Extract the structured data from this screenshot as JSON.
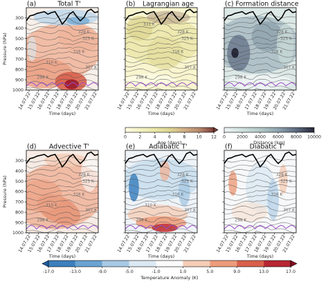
{
  "chart_data": {
    "type": "heatmap",
    "panels": [
      {
        "id": "a",
        "letter": "(a)",
        "title": "Total T'",
        "field": "total"
      },
      {
        "id": "b",
        "letter": "(b)",
        "title": "Lagrangian age",
        "field": "age"
      },
      {
        "id": "c",
        "letter": "(c)",
        "title": "Formation distance",
        "field": "distance"
      },
      {
        "id": "d",
        "letter": "(d)",
        "title": "Advective T'",
        "field": "advective"
      },
      {
        "id": "e",
        "letter": "(e)",
        "title": "Adiabatic T'",
        "field": "adiabatic"
      },
      {
        "id": "f",
        "letter": "(f)",
        "title": "Diabatic T'",
        "field": "diabatic"
      }
    ],
    "x_tick_labels": [
      "14.07.22",
      "15.07.22",
      "16.07.22",
      "17.07.22",
      "18.07.22",
      "19.07.22",
      "20.07.22",
      "21.07.22"
    ],
    "xlabel": "Time (days)",
    "ylabel": "Pressure (hPa)",
    "y_ticks": [
      300,
      400,
      500,
      600,
      700,
      800,
      900,
      1000
    ],
    "ylim": [
      1000,
      200
    ],
    "contour_labels": [
      {
        "panel": "a",
        "text": "328 K",
        "x": 0.8,
        "y": 0.31
      },
      {
        "panel": "a",
        "text": "325 K",
        "x": 0.86,
        "y": 0.39
      },
      {
        "panel": "a",
        "text": "316 K",
        "x": 0.73,
        "y": 0.55
      },
      {
        "panel": "a",
        "text": "310 K",
        "x": 0.35,
        "y": 0.68
      },
      {
        "panel": "a",
        "text": "307 K",
        "x": 0.9,
        "y": 0.74
      },
      {
        "panel": "a",
        "text": "298 K",
        "x": 0.23,
        "y": 0.86
      },
      {
        "panel": "b",
        "text": "331 K",
        "x": 0.33,
        "y": 0.22
      },
      {
        "panel": "b",
        "text": "328 K",
        "x": 0.8,
        "y": 0.31
      },
      {
        "panel": "b",
        "text": "325 K",
        "x": 0.86,
        "y": 0.39
      },
      {
        "panel": "b",
        "text": "316 K",
        "x": 0.73,
        "y": 0.55
      },
      {
        "panel": "b",
        "text": "307 K",
        "x": 0.9,
        "y": 0.74
      },
      {
        "panel": "b",
        "text": "298 K",
        "x": 0.23,
        "y": 0.86
      },
      {
        "panel": "c",
        "text": "328 K",
        "x": 0.8,
        "y": 0.31
      },
      {
        "panel": "c",
        "text": "325 K",
        "x": 0.86,
        "y": 0.39
      },
      {
        "panel": "c",
        "text": "316 K",
        "x": 0.73,
        "y": 0.55
      },
      {
        "panel": "c",
        "text": "307 K",
        "x": 0.9,
        "y": 0.74
      },
      {
        "panel": "c",
        "text": "298 K",
        "x": 0.23,
        "y": 0.86
      },
      {
        "panel": "d",
        "text": "328 K",
        "x": 0.8,
        "y": 0.31
      },
      {
        "panel": "d",
        "text": "325 K",
        "x": 0.86,
        "y": 0.39
      },
      {
        "panel": "d",
        "text": "316 K",
        "x": 0.73,
        "y": 0.55
      },
      {
        "panel": "d",
        "text": "310 K",
        "x": 0.35,
        "y": 0.68
      },
      {
        "panel": "d",
        "text": "307 K",
        "x": 0.9,
        "y": 0.74
      },
      {
        "panel": "d",
        "text": "298 K",
        "x": 0.23,
        "y": 0.86
      },
      {
        "panel": "e",
        "text": "328 K",
        "x": 0.8,
        "y": 0.31
      },
      {
        "panel": "e",
        "text": "325 K",
        "x": 0.86,
        "y": 0.39
      },
      {
        "panel": "e",
        "text": "316 K",
        "x": 0.73,
        "y": 0.55
      },
      {
        "panel": "e",
        "text": "310 K",
        "x": 0.35,
        "y": 0.68
      },
      {
        "panel": "e",
        "text": "307 K",
        "x": 0.9,
        "y": 0.74
      },
      {
        "panel": "e",
        "text": "298 K",
        "x": 0.23,
        "y": 0.86
      },
      {
        "panel": "f",
        "text": "328 K",
        "x": 0.8,
        "y": 0.31
      },
      {
        "panel": "f",
        "text": "325 K",
        "x": 0.86,
        "y": 0.39
      },
      {
        "panel": "f",
        "text": "316 K",
        "x": 0.73,
        "y": 0.55
      },
      {
        "panel": "f",
        "text": "307 K",
        "x": 0.9,
        "y": 0.74
      },
      {
        "panel": "f",
        "text": "298 K",
        "x": 0.23,
        "y": 0.86
      }
    ],
    "colorbars": [
      {
        "id": "age",
        "label": "Age (days)",
        "ticks": [
          "0",
          "2",
          "4",
          "6",
          "8",
          "10",
          "12"
        ],
        "range": [
          0,
          12
        ],
        "colors": [
          "#fdfbe3",
          "#f3f1c4",
          "#e9e6a9",
          "#ddd693",
          "#cfae86",
          "#b78a6e",
          "#7a3d36"
        ]
      },
      {
        "id": "distance",
        "label": "Distance (km)",
        "ticks": [
          "0",
          "2000",
          "4000",
          "6000",
          "8000",
          "10000"
        ],
        "range": [
          0,
          10000
        ],
        "colors": [
          "#edf4f3",
          "#cfe0dd",
          "#b2c8c7",
          "#8ea3ae",
          "#5e6a80",
          "#262738"
        ]
      },
      {
        "id": "anomaly",
        "label": "Temperature Anomaly (K)",
        "ticks": [
          "-17.0",
          "-13.0",
          "-9.0",
          "-5.0",
          "-1.0",
          "1.0",
          "5.0",
          "9.0",
          "13.0",
          "17.0"
        ],
        "colors": [
          "#1f5fa6",
          "#3b7fbd",
          "#6aa3d2",
          "#a7c9e4",
          "#dbe9f3",
          "#fbfbfb",
          "#f5cdb6",
          "#ec9c7b",
          "#d8604b",
          "#b82532",
          "#8a0b23"
        ]
      }
    ],
    "colors": {
      "tropopause": "#000000",
      "boundary_layer": "#9b4dc8",
      "isentropes": "#555555"
    }
  }
}
